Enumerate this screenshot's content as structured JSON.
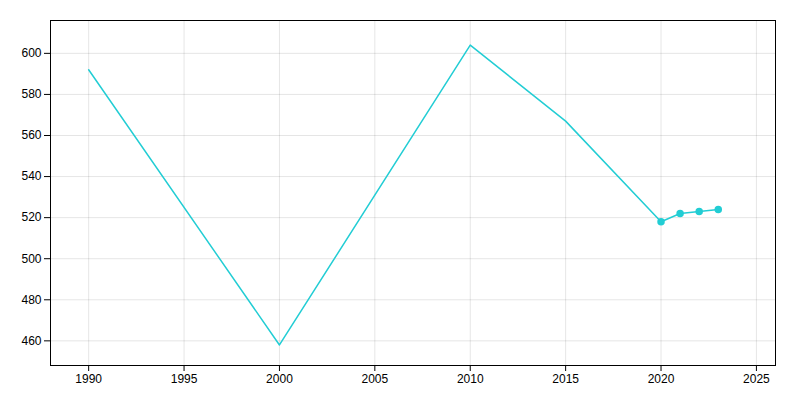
{
  "chart_data": {
    "type": "line",
    "x": [
      1990,
      2000,
      2010,
      2015,
      2020,
      2021,
      2022,
      2023
    ],
    "series": [
      {
        "type": "line",
        "color": "#22cdd4",
        "values": [
          592,
          458,
          604,
          567,
          518,
          522,
          523,
          524
        ]
      },
      {
        "type": "scatter",
        "marker": "circle",
        "color": "#22cdd4",
        "values": [
          null,
          null,
          null,
          null,
          518,
          522,
          523,
          524
        ]
      }
    ],
    "xlim": [
      1988,
      2026
    ],
    "xticks": [
      1990,
      1995,
      2000,
      2005,
      2010,
      2015,
      2020,
      2025
    ],
    "ylim": [
      448,
      616
    ],
    "yticks": [
      460,
      480,
      500,
      520,
      540,
      560,
      580,
      600
    ],
    "grid": true
  }
}
